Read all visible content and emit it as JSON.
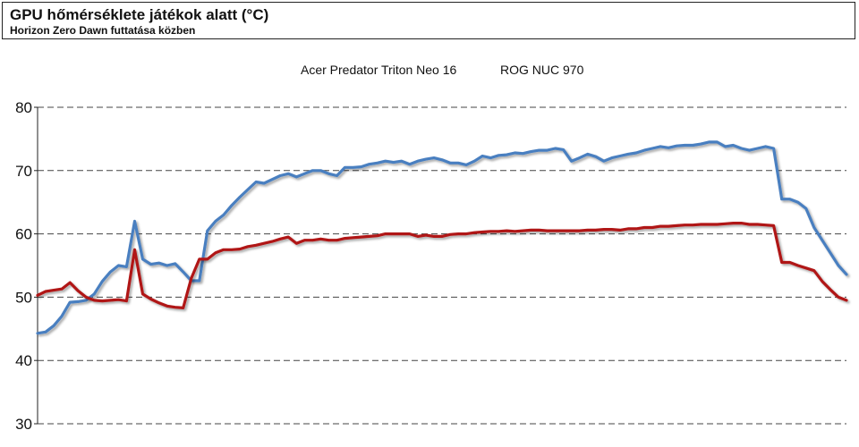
{
  "chart_data": {
    "type": "line",
    "title": "GPU hőmérséklete játékok alatt (°C)",
    "subtitle": "Horizon Zero Dawn futtatása közben",
    "xlabel": "",
    "ylabel": "",
    "ylim": [
      30,
      80
    ],
    "yticks": [
      30,
      40,
      50,
      60,
      70,
      80
    ],
    "grid": true,
    "legend_position": "top-center",
    "x": [
      0,
      1,
      2,
      3,
      4,
      5,
      6,
      7,
      8,
      9,
      10,
      11,
      12,
      13,
      14,
      15,
      16,
      17,
      18,
      19,
      20,
      21,
      22,
      23,
      24,
      25,
      26,
      27,
      28,
      29,
      30,
      31,
      32,
      33,
      34,
      35,
      36,
      37,
      38,
      39,
      40,
      41,
      42,
      43,
      44,
      45,
      46,
      47,
      48,
      49,
      50,
      51,
      52,
      53,
      54,
      55,
      56,
      57,
      58,
      59,
      60,
      61,
      62,
      63,
      64,
      65,
      66,
      67,
      68,
      69,
      70,
      71,
      72,
      73,
      74,
      75,
      76,
      77,
      78,
      79,
      80,
      81,
      82,
      83,
      84,
      85,
      86,
      87,
      88,
      89,
      90,
      91,
      92,
      93,
      94,
      95,
      96,
      97,
      98,
      99,
      100
    ],
    "series": [
      {
        "name": "Acer Predator Triton Neo 16",
        "color": "#4a7fc0",
        "values": [
          44.3,
          44.5,
          45.5,
          47.0,
          49.2,
          49.3,
          49.5,
          50.5,
          52.5,
          54.0,
          55.0,
          54.8,
          62.0,
          56.0,
          55.2,
          55.4,
          55.0,
          55.3,
          54.0,
          52.6,
          52.6,
          60.5,
          62.0,
          63.0,
          64.5,
          65.8,
          67.0,
          68.2,
          68.0,
          68.6,
          69.2,
          69.5,
          69.0,
          69.5,
          70.0,
          70.0,
          69.5,
          69.2,
          70.5,
          70.5,
          70.6,
          71.0,
          71.2,
          71.5,
          71.3,
          71.5,
          71.0,
          71.5,
          71.8,
          72.0,
          71.7,
          71.2,
          71.2,
          70.9,
          71.5,
          72.3,
          72.0,
          72.4,
          72.5,
          72.8,
          72.7,
          73.0,
          73.2,
          73.2,
          73.5,
          73.3,
          71.5,
          72.0,
          72.6,
          72.2,
          71.5,
          72.0,
          72.3,
          72.6,
          72.8,
          73.2,
          73.5,
          73.8,
          73.6,
          73.9,
          74.0,
          74.0,
          74.2,
          74.5,
          74.5,
          73.8,
          74.0,
          73.5,
          73.2,
          73.5,
          73.8,
          73.5,
          65.5,
          65.5,
          65.0,
          64.0,
          61.0,
          59.0,
          57.0,
          55.0,
          53.6
        ]
      },
      {
        "name": "ROG NUC 970",
        "color": "#b01515",
        "values": [
          50.3,
          50.9,
          51.1,
          51.3,
          52.3,
          51.0,
          50.0,
          49.5,
          49.4,
          49.5,
          49.6,
          49.4,
          57.5,
          50.5,
          49.7,
          49.1,
          48.6,
          48.4,
          48.3,
          53.0,
          56.0,
          56.0,
          57.0,
          57.5,
          57.5,
          57.6,
          58.0,
          58.2,
          58.5,
          58.8,
          59.2,
          59.5,
          58.5,
          59.0,
          59.0,
          59.2,
          59.0,
          59.0,
          59.3,
          59.4,
          59.5,
          59.6,
          59.7,
          60.0,
          60.0,
          60.0,
          60.0,
          59.6,
          59.8,
          59.6,
          59.6,
          59.9,
          60.0,
          60.0,
          60.2,
          60.3,
          60.4,
          60.4,
          60.5,
          60.4,
          60.5,
          60.6,
          60.6,
          60.5,
          60.5,
          60.5,
          60.5,
          60.5,
          60.6,
          60.6,
          60.7,
          60.7,
          60.6,
          60.8,
          60.8,
          61.0,
          61.0,
          61.2,
          61.2,
          61.3,
          61.4,
          61.4,
          61.5,
          61.5,
          61.5,
          61.6,
          61.7,
          61.7,
          61.5,
          61.5,
          61.4,
          61.3,
          55.5,
          55.5,
          55.0,
          54.6,
          54.2,
          52.5,
          51.2,
          50.0,
          49.5
        ]
      }
    ]
  }
}
